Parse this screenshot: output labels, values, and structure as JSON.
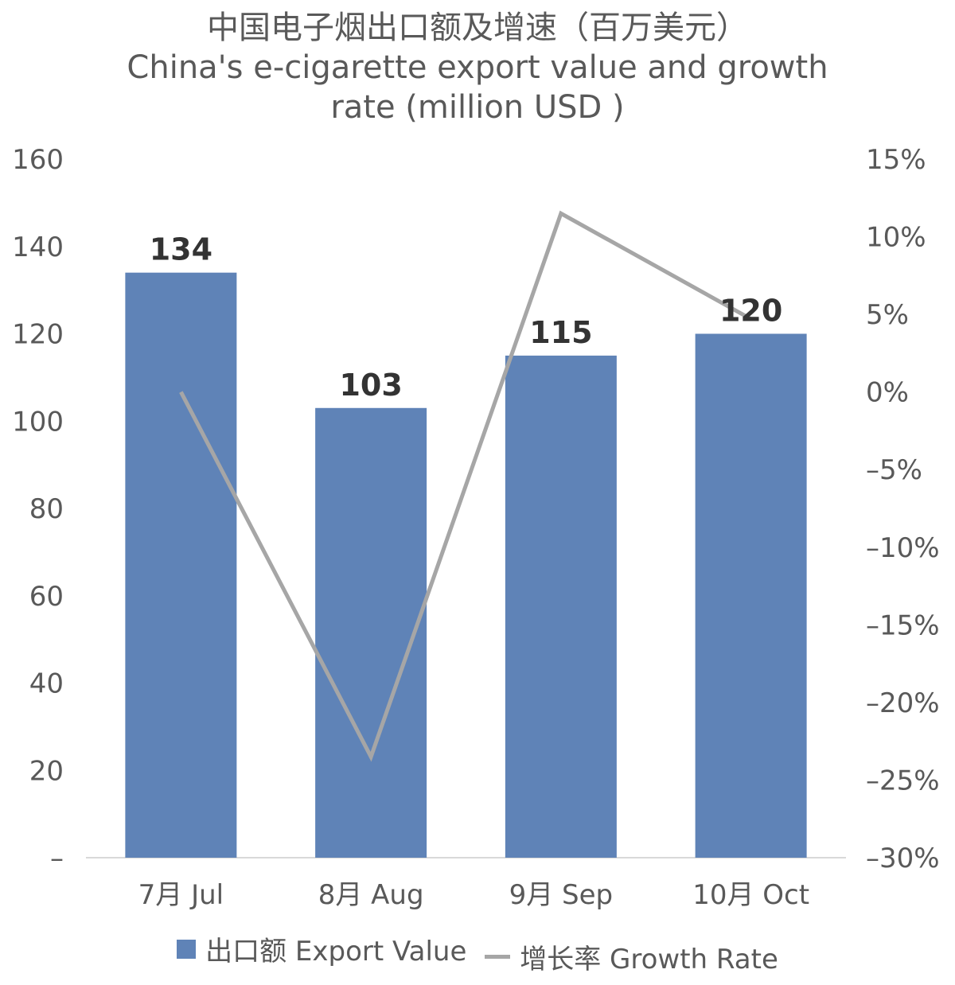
{
  "chart_data": {
    "type": "bar",
    "title_lines": [
      "中国电子烟出口额及增速（百万美元）",
      "China's e-cigarette export value and growth",
      "rate (million USD )"
    ],
    "categories": [
      "7月 Jul",
      "8月 Aug",
      "9月 Sep",
      "10月 Oct"
    ],
    "series": [
      {
        "name": "出口额 Export Value",
        "type": "bar",
        "axis": "left",
        "values": [
          134,
          103,
          115,
          120
        ],
        "labels": [
          "134",
          "103",
          "115",
          "120"
        ]
      },
      {
        "name": "增长率 Growth Rate",
        "type": "line",
        "axis": "right",
        "values": [
          0.0,
          -23.5,
          11.5,
          4.7
        ]
      }
    ],
    "y_left": {
      "ylim": [
        0,
        160
      ],
      "ticks": [
        0,
        20,
        40,
        60,
        80,
        100,
        120,
        140,
        160
      ],
      "tick_labels": [
        "–",
        "20",
        "40",
        "60",
        "80",
        "100",
        "120",
        "140",
        "160"
      ]
    },
    "y_right": {
      "ylim": [
        -30,
        15
      ],
      "ticks": [
        -30,
        -25,
        -20,
        -15,
        -10,
        -5,
        0,
        5,
        10,
        15
      ],
      "tick_labels": [
        "–30%",
        "–25%",
        "–20%",
        "–15%",
        "–10%",
        "–5%",
        "0%",
        "5%",
        "10%",
        "15%"
      ]
    },
    "grid": false,
    "legend_position": "bottom",
    "colors": {
      "bar": "#5f83b7",
      "line": "#a6a6a6",
      "baseline": "#d9d9d9"
    }
  }
}
